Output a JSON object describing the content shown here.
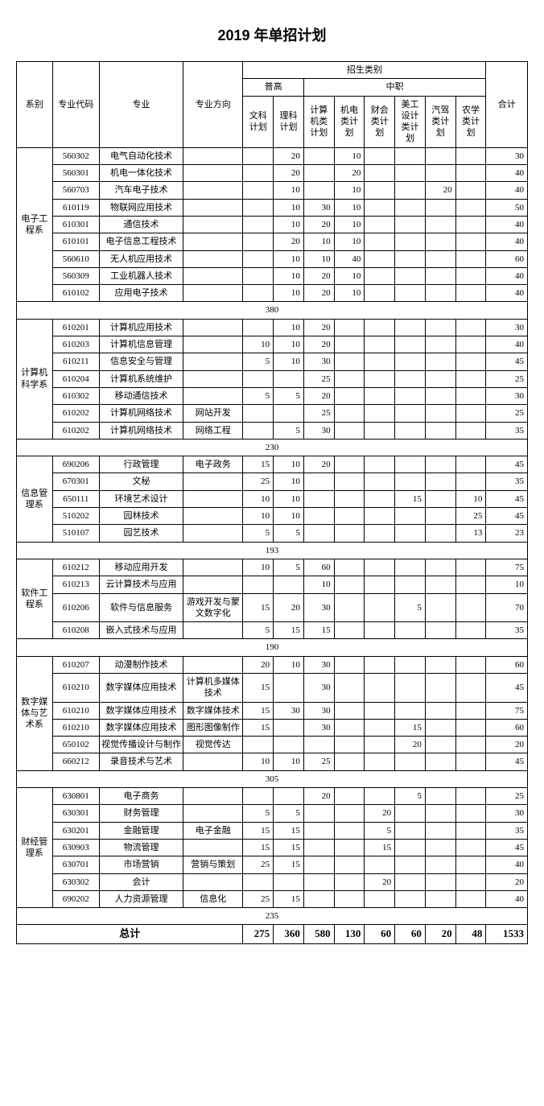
{
  "title": "2019 年单招计划",
  "headers": {
    "dept": "系别",
    "code": "专业代码",
    "major": "专业",
    "dir": "专业方向",
    "catTop": "招生类别",
    "pugao": "普高",
    "zhongzhi": "中职",
    "wenke": "文科计划",
    "like": "理科计划",
    "jisuanji": "计算机类计划",
    "jidian": "机电类计划",
    "caikuai": "财会类计划",
    "meigong": "美工设计类计划",
    "qijia": "汽驾类计划",
    "nongxue": "农学类计划",
    "total": "合计"
  },
  "grandLabel": "总计",
  "grandTotals": [
    "275",
    "360",
    "580",
    "130",
    "60",
    "60",
    "20",
    "48",
    "1533"
  ],
  "depts": [
    {
      "name": "电子工程系",
      "rows": [
        {
          "code": "560302",
          "major": "电气自动化技术",
          "dir": "",
          "v": [
            "",
            "20",
            "",
            "10",
            "",
            "",
            "",
            "",
            "30"
          ]
        },
        {
          "code": "560301",
          "major": "机电一体化技术",
          "dir": "",
          "v": [
            "",
            "20",
            "",
            "20",
            "",
            "",
            "",
            "",
            "40"
          ]
        },
        {
          "code": "560703",
          "major": "汽车电子技术",
          "dir": "",
          "v": [
            "",
            "10",
            "",
            "10",
            "",
            "",
            "20",
            "",
            "40"
          ]
        },
        {
          "code": "610119",
          "major": "物联网应用技术",
          "dir": "",
          "v": [
            "",
            "10",
            "30",
            "10",
            "",
            "",
            "",
            "",
            "50"
          ]
        },
        {
          "code": "610301",
          "major": "通信技术",
          "dir": "",
          "v": [
            "",
            "10",
            "20",
            "10",
            "",
            "",
            "",
            "",
            "40"
          ]
        },
        {
          "code": "610101",
          "major": "电子信息工程技术",
          "dir": "",
          "v": [
            "",
            "20",
            "10",
            "10",
            "",
            "",
            "",
            "",
            "40"
          ]
        },
        {
          "code": "560610",
          "major": "无人机应用技术",
          "dir": "",
          "v": [
            "",
            "10",
            "10",
            "40",
            "",
            "",
            "",
            "",
            "60"
          ]
        },
        {
          "code": "560309",
          "major": "工业机器人技术",
          "dir": "",
          "v": [
            "",
            "10",
            "20",
            "10",
            "",
            "",
            "",
            "",
            "40"
          ]
        },
        {
          "code": "610102",
          "major": "应用电子技术",
          "dir": "",
          "v": [
            "",
            "10",
            "20",
            "10",
            "",
            "",
            "",
            "",
            "40"
          ]
        }
      ],
      "subtotal": "380"
    },
    {
      "name": "计算机科学系",
      "rows": [
        {
          "code": "610201",
          "major": "计算机应用技术",
          "dir": "",
          "v": [
            "",
            "10",
            "20",
            "",
            "",
            "",
            "",
            "",
            "30"
          ]
        },
        {
          "code": "610203",
          "major": "计算机信息管理",
          "dir": "",
          "v": [
            "10",
            "10",
            "20",
            "",
            "",
            "",
            "",
            "",
            "40"
          ]
        },
        {
          "code": "610211",
          "major": "信息安全与管理",
          "dir": "",
          "v": [
            "5",
            "10",
            "30",
            "",
            "",
            "",
            "",
            "",
            "45"
          ]
        },
        {
          "code": "610204",
          "major": "计算机系统维护",
          "dir": "",
          "v": [
            "",
            "",
            "25",
            "",
            "",
            "",
            "",
            "",
            "25"
          ]
        },
        {
          "code": "610302",
          "major": "移动通信技术",
          "dir": "",
          "v": [
            "5",
            "5",
            "20",
            "",
            "",
            "",
            "",
            "",
            "30"
          ]
        },
        {
          "code": "610202",
          "major": "计算机网络技术",
          "dir": "网站开发",
          "v": [
            "",
            "",
            "25",
            "",
            "",
            "",
            "",
            "",
            "25"
          ]
        },
        {
          "code": "610202",
          "major": "计算机网络技术",
          "dir": "网络工程",
          "v": [
            "",
            "5",
            "30",
            "",
            "",
            "",
            "",
            "",
            "35"
          ]
        }
      ],
      "subtotal": "230"
    },
    {
      "name": "信息管理系",
      "rows": [
        {
          "code": "690206",
          "major": "行政管理",
          "dir": "电子政务",
          "v": [
            "15",
            "10",
            "20",
            "",
            "",
            "",
            "",
            "",
            "45"
          ]
        },
        {
          "code": "670301",
          "major": "文秘",
          "dir": "",
          "v": [
            "25",
            "10",
            "",
            "",
            "",
            "",
            "",
            "",
            "35"
          ]
        },
        {
          "code": "650111",
          "major": "环境艺术设计",
          "dir": "",
          "v": [
            "10",
            "10",
            "",
            "",
            "",
            "15",
            "",
            "10",
            "45"
          ]
        },
        {
          "code": "510202",
          "major": "园林技术",
          "dir": "",
          "v": [
            "10",
            "10",
            "",
            "",
            "",
            "",
            "",
            "25",
            "45"
          ]
        },
        {
          "code": "510107",
          "major": "园艺技术",
          "dir": "",
          "v": [
            "5",
            "5",
            "",
            "",
            "",
            "",
            "",
            "13",
            "23"
          ]
        }
      ],
      "subtotal": "193"
    },
    {
      "name": "软件工程系",
      "rows": [
        {
          "code": "610212",
          "major": "移动应用开发",
          "dir": "",
          "v": [
            "10",
            "5",
            "60",
            "",
            "",
            "",
            "",
            "",
            "75"
          ]
        },
        {
          "code": "610213",
          "major": "云计算技术与应用",
          "dir": "",
          "v": [
            "",
            "",
            "10",
            "",
            "",
            "",
            "",
            "",
            "10"
          ]
        },
        {
          "code": "610206",
          "major": "软件与信息服务",
          "dir": "游戏开发与蒙文数字化",
          "v": [
            "15",
            "20",
            "30",
            "",
            "",
            "5",
            "",
            "",
            "70"
          ]
        },
        {
          "code": "610208",
          "major": "嵌入式技术与应用",
          "dir": "",
          "v": [
            "5",
            "15",
            "15",
            "",
            "",
            "",
            "",
            "",
            "35"
          ]
        }
      ],
      "subtotal": "190"
    },
    {
      "name": "数字媒体与艺术系",
      "rows": [
        {
          "code": "610207",
          "major": "动漫制作技术",
          "dir": "",
          "v": [
            "20",
            "10",
            "30",
            "",
            "",
            "",
            "",
            "",
            "60"
          ]
        },
        {
          "code": "610210",
          "major": "数字媒体应用技术",
          "dir": "计算机多媒体技术",
          "v": [
            "15",
            "",
            "30",
            "",
            "",
            "",
            "",
            "",
            "45"
          ]
        },
        {
          "code": "610210",
          "major": "数字媒体应用技术",
          "dir": "数字媒体技术",
          "v": [
            "15",
            "30",
            "30",
            "",
            "",
            "",
            "",
            "",
            "75"
          ]
        },
        {
          "code": "610210",
          "major": "数字媒体应用技术",
          "dir": "图形图像制作",
          "v": [
            "15",
            "",
            "30",
            "",
            "",
            "15",
            "",
            "",
            "60"
          ]
        },
        {
          "code": "650102",
          "major": "视觉传播设计与制作",
          "dir": "视觉传达",
          "v": [
            "",
            "",
            "",
            "",
            "",
            "20",
            "",
            "",
            "20"
          ]
        },
        {
          "code": "660212",
          "major": "录音技术与艺术",
          "dir": "",
          "v": [
            "10",
            "10",
            "25",
            "",
            "",
            "",
            "",
            "",
            "45"
          ]
        }
      ],
      "subtotal": "305"
    },
    {
      "name": "财经管理系",
      "rows": [
        {
          "code": "630801",
          "major": "电子商务",
          "dir": "",
          "v": [
            "",
            "",
            "20",
            "",
            "",
            "5",
            "",
            "",
            "25"
          ]
        },
        {
          "code": "630301",
          "major": "财务管理",
          "dir": "",
          "v": [
            "5",
            "5",
            "",
            "",
            "20",
            "",
            "",
            "",
            "30"
          ]
        },
        {
          "code": "630201",
          "major": "金融管理",
          "dir": "电子金融",
          "v": [
            "15",
            "15",
            "",
            "",
            "5",
            "",
            "",
            "",
            "35"
          ]
        },
        {
          "code": "630903",
          "major": "物流管理",
          "dir": "",
          "v": [
            "15",
            "15",
            "",
            "",
            "15",
            "",
            "",
            "",
            "45"
          ]
        },
        {
          "code": "630701",
          "major": "市场营销",
          "dir": "营销与策划",
          "v": [
            "25",
            "15",
            "",
            "",
            "",
            "",
            "",
            "",
            "40"
          ]
        },
        {
          "code": "630302",
          "major": "会计",
          "dir": "",
          "v": [
            "",
            "",
            "",
            "",
            "20",
            "",
            "",
            "",
            "20"
          ]
        },
        {
          "code": "690202",
          "major": "人力资源管理",
          "dir": "信息化",
          "v": [
            "25",
            "15",
            "",
            "",
            "",
            "",
            "",
            "",
            "40"
          ]
        }
      ],
      "subtotal": "235"
    }
  ]
}
